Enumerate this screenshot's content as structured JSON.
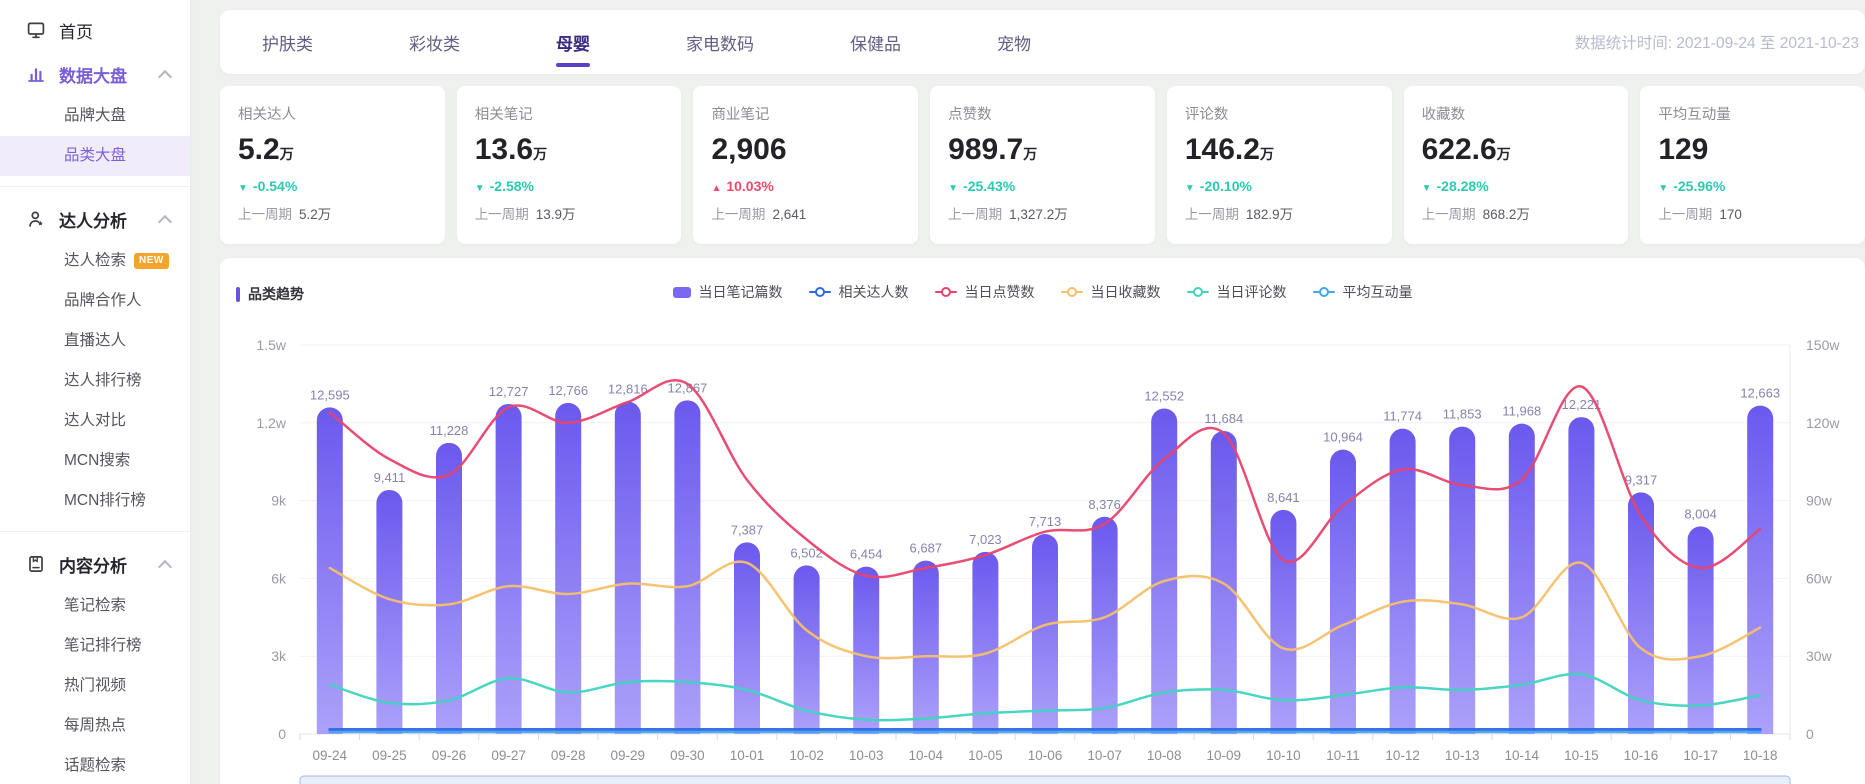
{
  "theme": {
    "accent_purple": "#7b5ed6",
    "tab_active": "#3c2a80",
    "trend_down": "#2cc9b2",
    "trend_up": "#f0486b",
    "bar_color": "#7a68f0",
    "badge_orange": "#f7a42d"
  },
  "sidebar": {
    "items": [
      {
        "id": "home",
        "label": "首页",
        "icon": "home-icon",
        "type": "top"
      },
      {
        "id": "data-dashboard",
        "label": "数据大盘",
        "icon": "chart-icon",
        "type": "section",
        "active": true,
        "expanded": true,
        "children": [
          {
            "id": "brand-dashboard",
            "label": "品牌大盘"
          },
          {
            "id": "category-dashboard",
            "label": "品类大盘",
            "selected": true
          }
        ],
        "divider_after": true
      },
      {
        "id": "influencer-analysis",
        "label": "达人分析",
        "icon": "influencer-icon",
        "type": "section",
        "expanded": true,
        "children": [
          {
            "id": "influencer-search",
            "label": "达人检索",
            "badge": "NEW"
          },
          {
            "id": "brand-partner",
            "label": "品牌合作人"
          },
          {
            "id": "live-influencer",
            "label": "直播达人"
          },
          {
            "id": "influencer-ranking",
            "label": "达人排行榜"
          },
          {
            "id": "influencer-compare",
            "label": "达人对比"
          },
          {
            "id": "mcn-search",
            "label": "MCN搜索"
          },
          {
            "id": "mcn-ranking",
            "label": "MCN排行榜"
          }
        ],
        "divider_after": true
      },
      {
        "id": "content-analysis",
        "label": "内容分析",
        "icon": "content-icon",
        "type": "section",
        "expanded": true,
        "children": [
          {
            "id": "note-search",
            "label": "笔记检索"
          },
          {
            "id": "note-ranking",
            "label": "笔记排行榜"
          },
          {
            "id": "hot-videos",
            "label": "热门视频"
          },
          {
            "id": "weekly-hot",
            "label": "每周热点"
          },
          {
            "id": "topic-search",
            "label": "话题检索"
          }
        ]
      }
    ]
  },
  "tabs": {
    "items": [
      {
        "id": "skincare",
        "label": "护肤类"
      },
      {
        "id": "makeup",
        "label": "彩妆类"
      },
      {
        "id": "mother-baby",
        "label": "母婴",
        "active": true
      },
      {
        "id": "appliance-digital",
        "label": "家电数码"
      },
      {
        "id": "health",
        "label": "保健品"
      },
      {
        "id": "pets",
        "label": "宠物"
      }
    ],
    "date_range": "数据统计时间: 2021-09-24 至 2021-10-23"
  },
  "stat_cards": [
    {
      "label": "相关达人",
      "value": "5.2",
      "unit": "万",
      "change": "-0.54%",
      "trend": "down",
      "prev_label": "上一周期",
      "prev_value": "5.2万"
    },
    {
      "label": "相关笔记",
      "value": "13.6",
      "unit": "万",
      "change": "-2.58%",
      "trend": "down",
      "prev_label": "上一周期",
      "prev_value": "13.9万"
    },
    {
      "label": "商业笔记",
      "value": "2,906",
      "unit": "",
      "change": "10.03%",
      "trend": "up",
      "prev_label": "上一周期",
      "prev_value": "2,641"
    },
    {
      "label": "点赞数",
      "value": "989.7",
      "unit": "万",
      "change": "-25.43%",
      "trend": "down",
      "prev_label": "上一周期",
      "prev_value": "1,327.2万"
    },
    {
      "label": "评论数",
      "value": "146.2",
      "unit": "万",
      "change": "-20.10%",
      "trend": "down",
      "prev_label": "上一周期",
      "prev_value": "182.9万"
    },
    {
      "label": "收藏数",
      "value": "622.6",
      "unit": "万",
      "change": "-28.28%",
      "trend": "down",
      "prev_label": "上一周期",
      "prev_value": "868.2万"
    },
    {
      "label": "平均互动量",
      "value": "129",
      "unit": "",
      "change": "-25.96%",
      "trend": "down",
      "prev_label": "上一周期",
      "prev_value": "170"
    }
  ],
  "chart_panel": {
    "title": "品类趋势"
  },
  "chart_data": {
    "type": "bar+line",
    "title": "品类趋势",
    "categories": [
      "09-24",
      "09-25",
      "09-26",
      "09-27",
      "09-28",
      "09-29",
      "09-30",
      "10-01",
      "10-02",
      "10-03",
      "10-04",
      "10-05",
      "10-06",
      "10-07",
      "10-08",
      "10-09",
      "10-10",
      "10-11",
      "10-12",
      "10-13",
      "10-14",
      "10-15",
      "10-16",
      "10-17",
      "10-18"
    ],
    "left_axis": {
      "ticks": [
        "0",
        "3k",
        "6k",
        "9k",
        "1.2w",
        "1.5w"
      ],
      "max": 15000
    },
    "right_axis": {
      "ticks": [
        "0",
        "30w",
        "60w",
        "90w",
        "120w",
        "150w"
      ],
      "max_wan": 150
    },
    "legend_position": "top-center",
    "grid": true,
    "series": [
      {
        "id": "notes",
        "name": "当日笔记篇数",
        "type": "bar",
        "axis": "left",
        "unit": "篇",
        "color": "#7a68f0",
        "values": [
          12595,
          9411,
          11228,
          12727,
          12766,
          12816,
          12867,
          7387,
          6502,
          6454,
          6687,
          7023,
          7713,
          8376,
          12552,
          11684,
          8641,
          10964,
          11774,
          11853,
          11968,
          12221,
          9317,
          8004,
          12663
        ]
      },
      {
        "id": "influencers",
        "name": "相关达人数",
        "type": "line",
        "axis": "right",
        "unit": "人",
        "color": "#2f6ae6",
        "values": [
          2100,
          1900,
          2000,
          2200,
          2150,
          2200,
          2250,
          1800,
          1600,
          1550,
          1600,
          1650,
          1750,
          1850,
          2200,
          2100,
          1800,
          2000,
          2100,
          2100,
          2150,
          2200,
          1850,
          1700,
          2150
        ]
      },
      {
        "id": "likes",
        "name": "当日点赞数",
        "type": "line",
        "axis": "right",
        "unit": "万",
        "color": "#e8436d",
        "values": [
          124,
          106,
          100,
          126,
          120,
          128,
          135,
          98,
          75,
          61,
          64,
          69,
          78,
          81,
          106,
          116,
          67,
          88,
          102,
          96,
          98,
          134,
          84,
          64,
          79
        ]
      },
      {
        "id": "collects",
        "name": "当日收藏数",
        "type": "line",
        "axis": "right",
        "unit": "万",
        "color": "#f4c06a",
        "values": [
          64,
          52,
          50,
          57,
          54,
          58,
          57,
          66,
          40,
          30,
          30,
          31,
          42,
          45,
          59,
          58,
          33,
          42,
          51,
          50,
          45,
          66,
          33,
          30,
          41
        ]
      },
      {
        "id": "comments",
        "name": "当日评论数",
        "type": "line",
        "axis": "right",
        "unit": "万",
        "color": "#3fd4bf",
        "values": [
          19,
          12,
          13,
          21.5,
          16,
          20,
          20,
          17,
          9,
          5.5,
          6,
          8,
          9,
          10,
          16,
          17,
          13,
          15,
          18,
          17,
          19,
          23,
          13,
          11,
          15
        ]
      },
      {
        "id": "avg-interaction",
        "name": "平均互动量",
        "type": "line",
        "axis": "right",
        "unit": "次",
        "color": "#41a7ec",
        "values": [
          150,
          120,
          130,
          160,
          155,
          160,
          165,
          120,
          95,
          90,
          95,
          100,
          110,
          115,
          160,
          150,
          115,
          135,
          150,
          150,
          155,
          165,
          120,
          105,
          160
        ]
      }
    ]
  }
}
